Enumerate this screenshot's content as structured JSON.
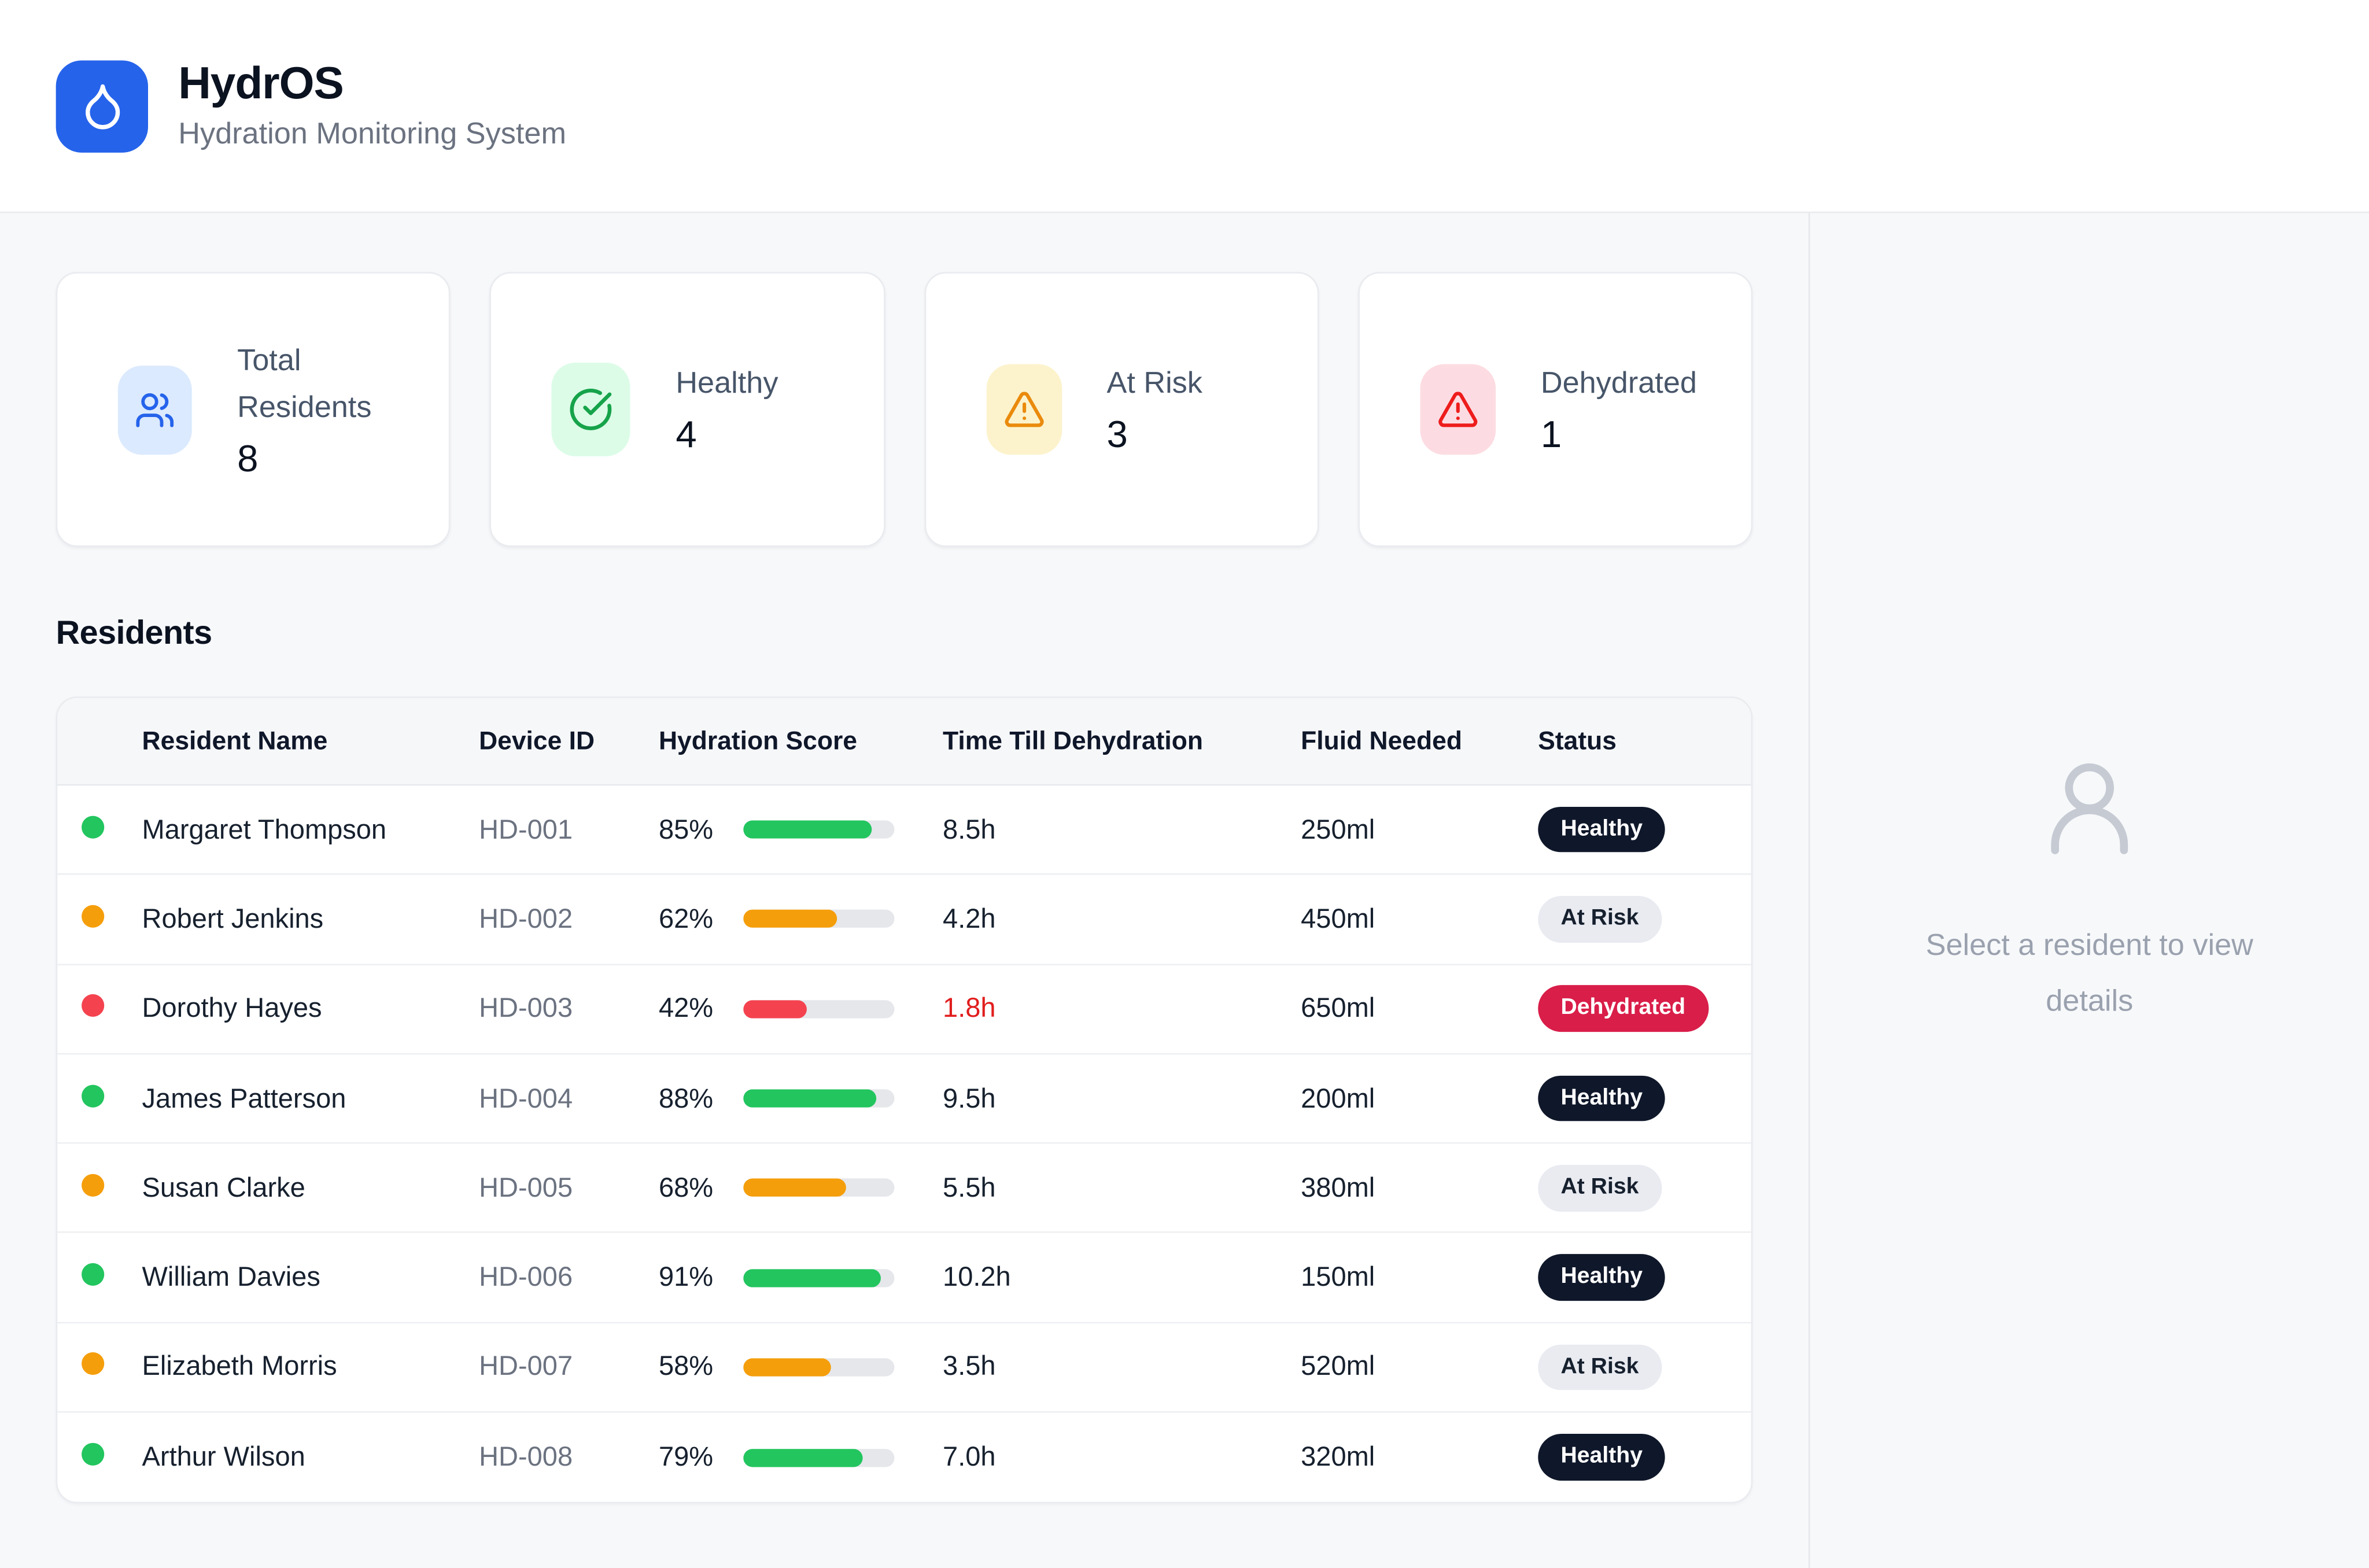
{
  "app": {
    "name": "HydrOS",
    "subtitle": "Hydration Monitoring System",
    "brand_color": "#2563eb",
    "logo_icon": "droplet-icon"
  },
  "stats": {
    "items": [
      {
        "label": "Total Residents",
        "value": "8",
        "icon": "users-icon",
        "icon_color": "#2563eb",
        "icon_bg": "#dbeafe"
      },
      {
        "label": "Healthy",
        "value": "4",
        "icon": "circle-check-icon",
        "icon_color": "#16a34a",
        "icon_bg": "#dcfce7"
      },
      {
        "label": "At Risk",
        "value": "3",
        "icon": "triangle-alert-icon",
        "icon_color": "#ea8a0c",
        "icon_bg": "#fcf3cd"
      },
      {
        "label": "Dehydrated",
        "value": "1",
        "icon": "triangle-alert-icon",
        "icon_color": "#ee1c1c",
        "icon_bg": "#fcdce2"
      }
    ]
  },
  "residents": {
    "title": "Residents",
    "table": {
      "columns": [
        {
          "label": "Resident Name"
        },
        {
          "label": "Device ID"
        },
        {
          "label": "Hydration Score"
        },
        {
          "label": "Time Till Dehydration"
        },
        {
          "label": "Fluid Needed"
        },
        {
          "label": "Status"
        }
      ],
      "rows": [
        {
          "name": "Margaret Thompson",
          "device_id": "HD-001",
          "score_label": "85%",
          "score_pct": 85,
          "dot_color": "#22c55e",
          "bar_color": "#22c55e",
          "time": "8.5h",
          "time_color": "#16202e",
          "fluid": "250ml",
          "status": "Healthy",
          "status_variant": "healthy",
          "badge_bg": "#0f172a",
          "badge_fg": "#ffffff"
        },
        {
          "name": "Robert Jenkins",
          "device_id": "HD-002",
          "score_label": "62%",
          "score_pct": 62,
          "dot_color": "#f59e0b",
          "bar_color": "#f59e0b",
          "time": "4.2h",
          "time_color": "#16202e",
          "fluid": "450ml",
          "status": "At Risk",
          "status_variant": "at-risk",
          "badge_bg": "#e9ebf1",
          "badge_fg": "#16202e"
        },
        {
          "name": "Dorothy Hayes",
          "device_id": "HD-003",
          "score_label": "42%",
          "score_pct": 42,
          "dot_color": "#f4434f",
          "bar_color": "#f4434f",
          "time": "1.8h",
          "time_color": "#e11d1d",
          "fluid": "650ml",
          "status": "Dehydrated",
          "status_variant": "dehydrated",
          "badge_bg": "#d91e49",
          "badge_fg": "#ffffff"
        },
        {
          "name": "James Patterson",
          "device_id": "HD-004",
          "score_label": "88%",
          "score_pct": 88,
          "dot_color": "#22c55e",
          "bar_color": "#22c55e",
          "time": "9.5h",
          "time_color": "#16202e",
          "fluid": "200ml",
          "status": "Healthy",
          "status_variant": "healthy",
          "badge_bg": "#0f172a",
          "badge_fg": "#ffffff"
        },
        {
          "name": "Susan Clarke",
          "device_id": "HD-005",
          "score_label": "68%",
          "score_pct": 68,
          "dot_color": "#f59e0b",
          "bar_color": "#f59e0b",
          "time": "5.5h",
          "time_color": "#16202e",
          "fluid": "380ml",
          "status": "At Risk",
          "status_variant": "at-risk",
          "badge_bg": "#e9ebf1",
          "badge_fg": "#16202e"
        },
        {
          "name": "William Davies",
          "device_id": "HD-006",
          "score_label": "91%",
          "score_pct": 91,
          "dot_color": "#22c55e",
          "bar_color": "#22c55e",
          "time": "10.2h",
          "time_color": "#16202e",
          "fluid": "150ml",
          "status": "Healthy",
          "status_variant": "healthy",
          "badge_bg": "#0f172a",
          "badge_fg": "#ffffff"
        },
        {
          "name": "Elizabeth Morris",
          "device_id": "HD-007",
          "score_label": "58%",
          "score_pct": 58,
          "dot_color": "#f59e0b",
          "bar_color": "#f59e0b",
          "time": "3.5h",
          "time_color": "#16202e",
          "fluid": "520ml",
          "status": "At Risk",
          "status_variant": "at-risk",
          "badge_bg": "#e9ebf1",
          "badge_fg": "#16202e"
        },
        {
          "name": "Arthur Wilson",
          "device_id": "HD-008",
          "score_label": "79%",
          "score_pct": 79,
          "dot_color": "#22c55e",
          "bar_color": "#22c55e",
          "time": "7.0h",
          "time_color": "#16202e",
          "fluid": "320ml",
          "status": "Healthy",
          "status_variant": "healthy",
          "badge_bg": "#0f172a",
          "badge_fg": "#ffffff"
        }
      ]
    }
  },
  "detail_panel": {
    "placeholder": "Select a resident to view details",
    "icon": "user-icon"
  }
}
